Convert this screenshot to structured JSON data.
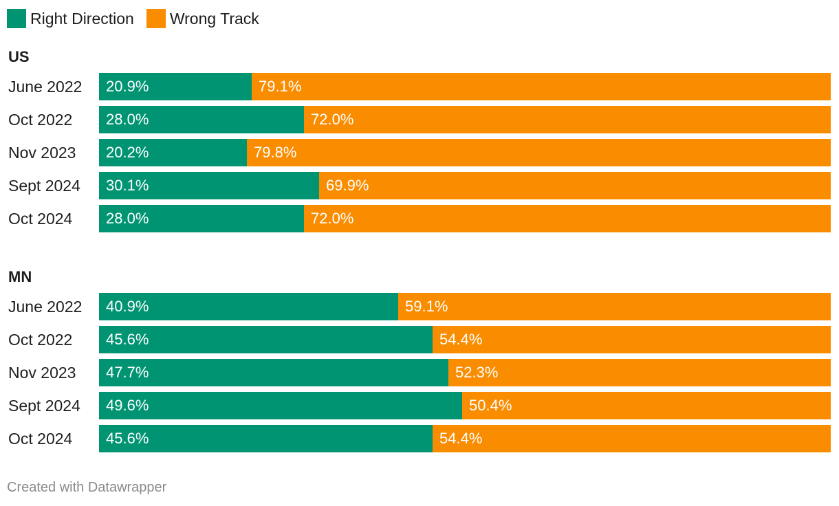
{
  "legend": [
    {
      "label": "Right Direction",
      "color": "#009473"
    },
    {
      "label": "Wrong Track",
      "color": "#fa8c00"
    }
  ],
  "chart_data": {
    "type": "bar",
    "stacked": true,
    "orientation": "horizontal",
    "xlim": [
      0,
      100
    ],
    "series_names": [
      "Right Direction",
      "Wrong Track"
    ],
    "groups": [
      {
        "title": "US",
        "rows": [
          {
            "label": "June 2022",
            "values": [
              20.9,
              79.1
            ],
            "labels": [
              "20.9%",
              "79.1%"
            ]
          },
          {
            "label": "Oct 2022",
            "values": [
              28.0,
              72.0
            ],
            "labels": [
              "28.0%",
              "72.0%"
            ]
          },
          {
            "label": "Nov 2023",
            "values": [
              20.2,
              79.8
            ],
            "labels": [
              "20.2%",
              "79.8%"
            ]
          },
          {
            "label": "Sept 2024",
            "values": [
              30.1,
              69.9
            ],
            "labels": [
              "30.1%",
              "69.9%"
            ]
          },
          {
            "label": "Oct 2024",
            "values": [
              28.0,
              72.0
            ],
            "labels": [
              "28.0%",
              "72.0%"
            ]
          }
        ]
      },
      {
        "title": "MN",
        "rows": [
          {
            "label": "June 2022",
            "values": [
              40.9,
              59.1
            ],
            "labels": [
              "40.9%",
              "59.1%"
            ]
          },
          {
            "label": "Oct 2022",
            "values": [
              45.6,
              54.4
            ],
            "labels": [
              "45.6%",
              "54.4%"
            ]
          },
          {
            "label": "Nov 2023",
            "values": [
              47.7,
              52.3
            ],
            "labels": [
              "47.7%",
              "52.3%"
            ]
          },
          {
            "label": "Sept 2024",
            "values": [
              49.6,
              50.4
            ],
            "labels": [
              "49.6%",
              "50.4%"
            ]
          },
          {
            "label": "Oct 2024",
            "values": [
              45.6,
              54.4
            ],
            "labels": [
              "45.6%",
              "54.4%"
            ]
          }
        ]
      }
    ]
  },
  "footer": "Created with Datawrapper"
}
